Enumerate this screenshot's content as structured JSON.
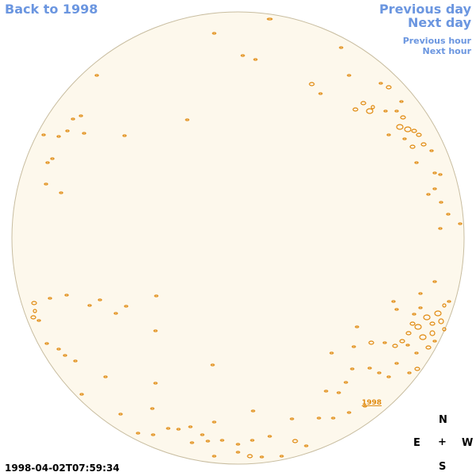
{
  "nav": {
    "back_label": "Back to 1998",
    "prev_day_label": "Previous day",
    "next_day_label": "Next day",
    "prev_hour_label": "Previous hour",
    "next_hour_label": "Next hour"
  },
  "compass": {
    "north": "N",
    "east": "E",
    "center": "+",
    "west": "W",
    "south": "S"
  },
  "timestamp": "1998-04-02T07:59:34",
  "region_label": "1998",
  "colors": {
    "link": "#6b96e0",
    "disk_fill": "#fdf8ec",
    "disk_stroke": "#c8bda0",
    "contour": "#e08a10"
  }
}
